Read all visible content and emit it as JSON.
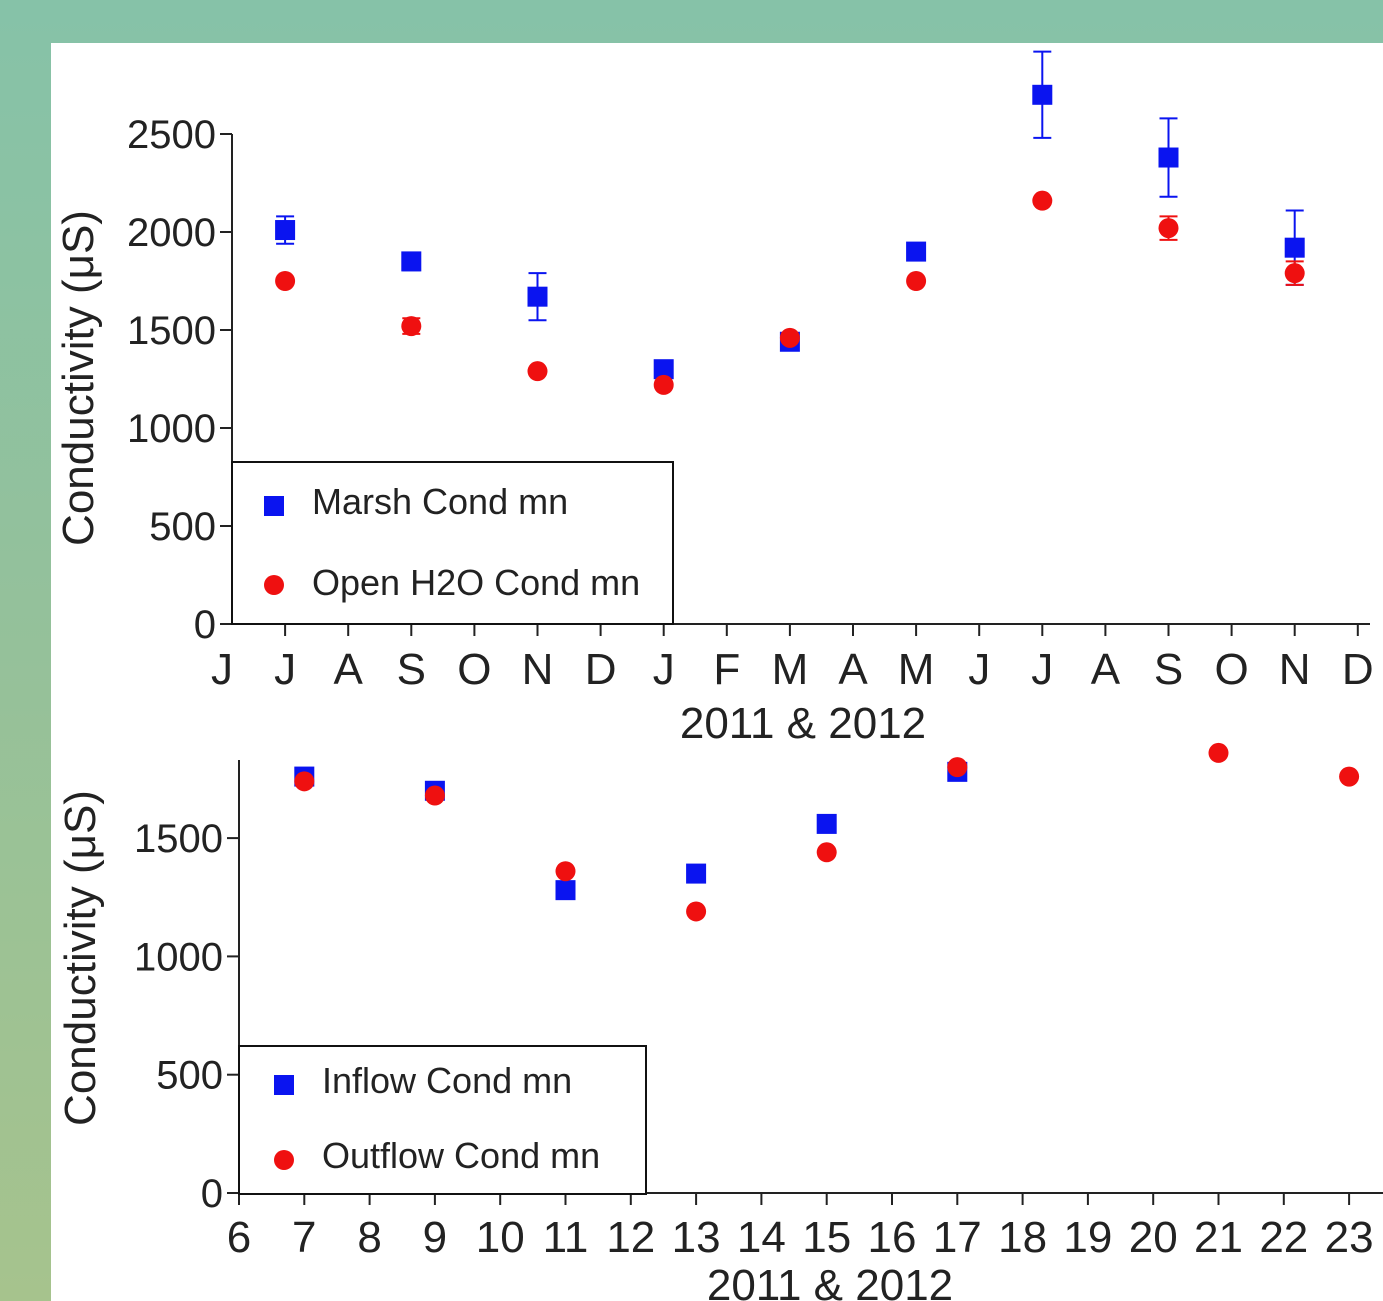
{
  "colors": {
    "background_top": "#86c2a8",
    "background_bottom": "#a6c38d",
    "marsh": "#0a14f0",
    "open_water": "#ef1010",
    "axis": "#222222"
  },
  "chart_data": [
    {
      "type": "scatter",
      "ylabel": "Conductivity (μS)",
      "xlabel": "2011 & 2012",
      "x_tick_labels": [
        "J",
        "J",
        "A",
        "S",
        "O",
        "N",
        "D",
        "J",
        "F",
        "M",
        "A",
        "M",
        "J",
        "J",
        "A",
        "S",
        "O",
        "N",
        "D"
      ],
      "y_ticks": [
        0,
        500,
        1000,
        1500,
        2000,
        2500
      ],
      "ylim": [
        0,
        2500
      ],
      "grid": false,
      "legend_position": "bottom-left",
      "series": [
        {
          "name": "Marsh Cond mn",
          "marker": "square",
          "x": [
            "J",
            "S",
            "N",
            "J",
            "M",
            "M",
            "J",
            "S",
            "N"
          ],
          "y": [
            2010,
            1850,
            1670,
            1300,
            1440,
            1900,
            2700,
            2380,
            1920
          ],
          "error": [
            70,
            45,
            120,
            30,
            25,
            25,
            220,
            200,
            190
          ]
        },
        {
          "name": "Open H2O Cond mn",
          "marker": "circle",
          "x": [
            "J",
            "S",
            "N",
            "J",
            "M",
            "M",
            "J",
            "S",
            "N"
          ],
          "y": [
            1750,
            1520,
            1290,
            1220,
            1460,
            1750,
            2160,
            2020,
            1790
          ],
          "error": [
            0,
            40,
            0,
            0,
            0,
            0,
            0,
            60,
            60
          ]
        }
      ]
    },
    {
      "type": "scatter",
      "ylabel": "Conductivity (μS)",
      "xlabel": "2011 & 2012",
      "x_tick_labels": [
        "6",
        "7",
        "8",
        "9",
        "10",
        "11",
        "12",
        "13",
        "14",
        "15",
        "16",
        "17",
        "18",
        "19",
        "20",
        "21",
        "22",
        "23"
      ],
      "y_ticks": [
        0,
        500,
        1000,
        1500
      ],
      "grid": false,
      "legend_position": "bottom-left",
      "series": [
        {
          "name": "Inflow Cond mn",
          "marker": "square",
          "x": [
            7,
            9,
            11,
            13,
            15,
            17
          ],
          "y": [
            1760,
            1700,
            1280,
            1350,
            1560,
            1780
          ]
        },
        {
          "name": "Outflow Cond mn",
          "marker": "circle",
          "x": [
            7,
            9,
            11,
            13,
            15,
            17,
            21,
            23
          ],
          "y": [
            1740,
            1680,
            1360,
            1190,
            1440,
            1800,
            1860,
            1760
          ]
        }
      ]
    }
  ]
}
